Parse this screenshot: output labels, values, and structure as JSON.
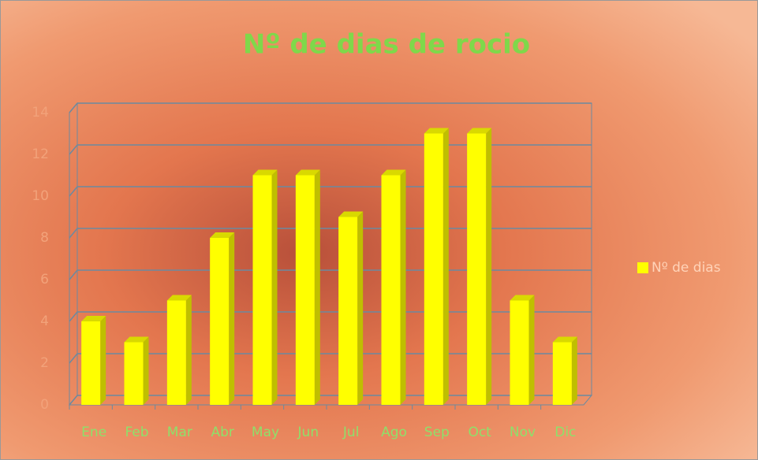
{
  "chart_data": {
    "type": "bar3d",
    "title": "Nº de dias de rocio",
    "categories": [
      "Ene",
      "Feb",
      "Mar",
      "Abr",
      "May",
      "Jun",
      "Jul",
      "Ago",
      "Sep",
      "Oct",
      "Nov",
      "Dic"
    ],
    "series": [
      {
        "name": "Nº de dias",
        "color": "#ffff00",
        "values": [
          4,
          3,
          5,
          8,
          11,
          11,
          9,
          11,
          13,
          13,
          5,
          3
        ]
      }
    ],
    "ylim": [
      0,
      14
    ],
    "yticks": [
      0,
      2,
      4,
      6,
      8,
      10,
      12,
      14
    ],
    "grid": true,
    "legend": "right"
  }
}
